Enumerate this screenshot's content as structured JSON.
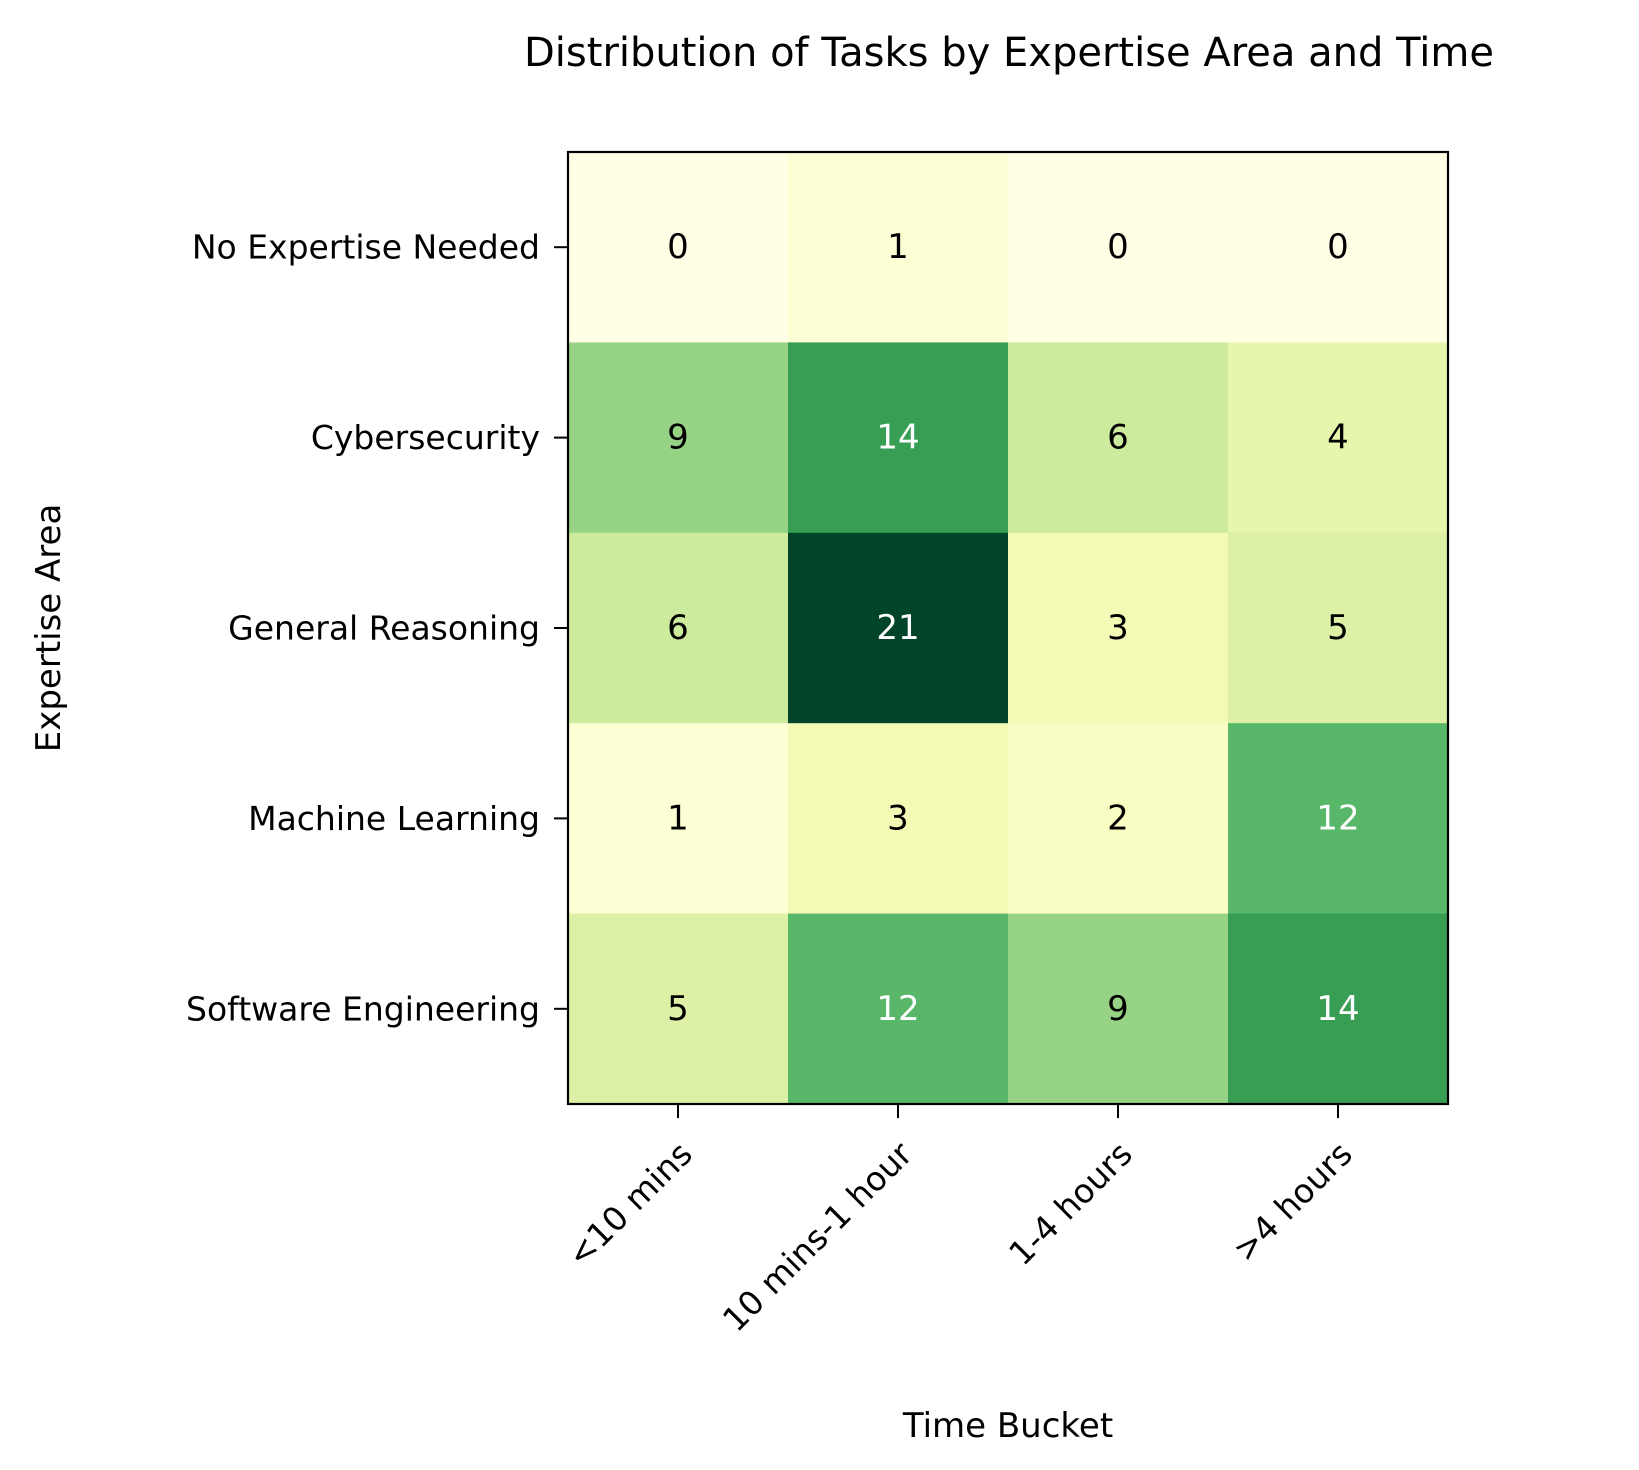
{
  "chart_data": {
    "type": "heatmap",
    "title": "Distribution of Tasks by Expertise Area and Time",
    "xlabel": "Time Bucket",
    "ylabel": "Expertise Area",
    "x_categories": [
      "<10 mins",
      "10 mins-1 hour",
      "1-4 hours",
      ">4 hours"
    ],
    "y_categories": [
      "No Expertise Needed",
      "Cybersecurity",
      "General Reasoning",
      "Machine Learning",
      "Software Engineering"
    ],
    "values": [
      [
        0,
        1,
        0,
        0
      ],
      [
        9,
        14,
        6,
        4
      ],
      [
        6,
        21,
        3,
        5
      ],
      [
        1,
        3,
        2,
        12
      ],
      [
        5,
        12,
        9,
        14
      ]
    ],
    "colormap": "YlGn",
    "value_range": [
      0,
      21
    ],
    "annotated": true,
    "grid": false,
    "legend": "none"
  }
}
